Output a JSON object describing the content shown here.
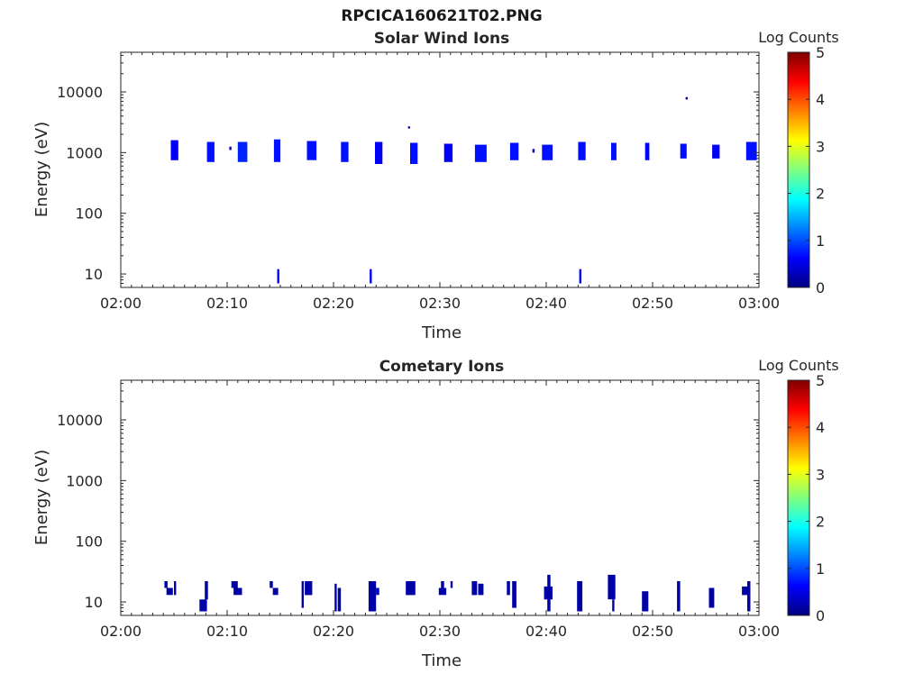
{
  "figure": {
    "filename": "RPCICA160621T02.PNG"
  },
  "colorbar": {
    "min": 0,
    "max": 5,
    "ticks": [
      0,
      1,
      2,
      3,
      4,
      5
    ],
    "tick_labels": [
      "0",
      "1",
      "2",
      "3",
      "4",
      "5"
    ],
    "colormap": "jet"
  },
  "chart_data": [
    {
      "type": "heatmap",
      "title": "Solar Wind Ions",
      "xlabel": "Time",
      "ylabel": "Energy (eV)",
      "colorbar_label": "Log Counts",
      "x_unit": "minutes after 02:00",
      "xlim": [
        "02:00",
        "03:00"
      ],
      "x_ticks": [
        "02:00",
        "02:10",
        "02:20",
        "02:30",
        "02:40",
        "02:50",
        "03:00"
      ],
      "y_scale": "log",
      "ylim": [
        6,
        45000
      ],
      "y_ticks": [
        10,
        100,
        1000,
        10000
      ],
      "y_tick_labels": [
        "10",
        "100",
        "1000",
        "10000"
      ],
      "grid": false,
      "cells": [
        {
          "t": 4.7,
          "dt": 0.7,
          "e_lo": 750,
          "e_hi": 1600,
          "v": 0.6
        },
        {
          "t": 8.1,
          "dt": 0.7,
          "e_lo": 700,
          "e_hi": 1500,
          "v": 0.7
        },
        {
          "t": 10.2,
          "dt": 0.2,
          "e_lo": 1100,
          "e_hi": 1250,
          "v": 0.3
        },
        {
          "t": 11.0,
          "dt": 0.9,
          "e_lo": 700,
          "e_hi": 1500,
          "v": 0.8
        },
        {
          "t": 14.4,
          "dt": 0.6,
          "e_lo": 700,
          "e_hi": 1650,
          "v": 0.7
        },
        {
          "t": 17.5,
          "dt": 0.9,
          "e_lo": 750,
          "e_hi": 1550,
          "v": 0.7
        },
        {
          "t": 20.7,
          "dt": 0.7,
          "e_lo": 700,
          "e_hi": 1500,
          "v": 0.7
        },
        {
          "t": 23.9,
          "dt": 0.7,
          "e_lo": 650,
          "e_hi": 1500,
          "v": 0.6
        },
        {
          "t": 27.0,
          "dt": 0.2,
          "e_lo": 2500,
          "e_hi": 2700,
          "v": 0.2
        },
        {
          "t": 27.2,
          "dt": 0.7,
          "e_lo": 650,
          "e_hi": 1450,
          "v": 0.7
        },
        {
          "t": 30.4,
          "dt": 0.8,
          "e_lo": 700,
          "e_hi": 1400,
          "v": 0.6
        },
        {
          "t": 33.3,
          "dt": 1.1,
          "e_lo": 700,
          "e_hi": 1350,
          "v": 0.7
        },
        {
          "t": 36.6,
          "dt": 0.8,
          "e_lo": 750,
          "e_hi": 1450,
          "v": 0.7
        },
        {
          "t": 38.7,
          "dt": 0.2,
          "e_lo": 1000,
          "e_hi": 1150,
          "v": 0.3
        },
        {
          "t": 39.6,
          "dt": 1.0,
          "e_lo": 750,
          "e_hi": 1350,
          "v": 0.7
        },
        {
          "t": 43.0,
          "dt": 0.7,
          "e_lo": 750,
          "e_hi": 1500,
          "v": 0.7
        },
        {
          "t": 46.1,
          "dt": 0.5,
          "e_lo": 750,
          "e_hi": 1450,
          "v": 0.7
        },
        {
          "t": 49.3,
          "dt": 0.4,
          "e_lo": 750,
          "e_hi": 1450,
          "v": 0.6
        },
        {
          "t": 52.6,
          "dt": 0.6,
          "e_lo": 800,
          "e_hi": 1400,
          "v": 0.7
        },
        {
          "t": 53.1,
          "dt": 0.2,
          "e_lo": 7500,
          "e_hi": 8200,
          "v": 0.2
        },
        {
          "t": 55.6,
          "dt": 0.7,
          "e_lo": 800,
          "e_hi": 1350,
          "v": 0.6
        },
        {
          "t": 58.8,
          "dt": 1.0,
          "e_lo": 750,
          "e_hi": 1500,
          "v": 0.7
        },
        {
          "t": 14.7,
          "dt": 0.2,
          "e_lo": 7,
          "e_hi": 12,
          "v": 0.6
        },
        {
          "t": 23.4,
          "dt": 0.2,
          "e_lo": 7,
          "e_hi": 12,
          "v": 0.6
        },
        {
          "t": 43.1,
          "dt": 0.2,
          "e_lo": 7,
          "e_hi": 12,
          "v": 0.6
        }
      ]
    },
    {
      "type": "heatmap",
      "title": "Cometary Ions",
      "xlabel": "Time",
      "ylabel": "Energy (eV)",
      "colorbar_label": "Log Counts",
      "x_unit": "minutes after 02:00",
      "xlim": [
        "02:00",
        "03:00"
      ],
      "x_ticks": [
        "02:00",
        "02:10",
        "02:20",
        "02:30",
        "02:40",
        "02:50",
        "03:00"
      ],
      "y_scale": "log",
      "ylim": [
        6,
        45000
      ],
      "y_ticks": [
        10,
        100,
        1000,
        10000
      ],
      "y_tick_labels": [
        "10",
        "100",
        "1000",
        "10000"
      ],
      "grid": false,
      "cells": [
        {
          "t": 4.1,
          "dt": 0.3,
          "e_lo": 17,
          "e_hi": 22,
          "v": 0.2
        },
        {
          "t": 4.3,
          "dt": 0.6,
          "e_lo": 13,
          "e_hi": 17,
          "v": 0.2
        },
        {
          "t": 5.0,
          "dt": 0.2,
          "e_lo": 13,
          "e_hi": 22,
          "v": 0.2
        },
        {
          "t": 7.4,
          "dt": 0.7,
          "e_lo": 7,
          "e_hi": 11,
          "v": 0.2
        },
        {
          "t": 7.9,
          "dt": 0.3,
          "e_lo": 11,
          "e_hi": 22,
          "v": 0.2
        },
        {
          "t": 10.4,
          "dt": 0.6,
          "e_lo": 17,
          "e_hi": 22,
          "v": 0.2
        },
        {
          "t": 10.6,
          "dt": 0.8,
          "e_lo": 13,
          "e_hi": 17,
          "v": 0.2
        },
        {
          "t": 14.0,
          "dt": 0.3,
          "e_lo": 17,
          "e_hi": 22,
          "v": 0.2
        },
        {
          "t": 14.3,
          "dt": 0.5,
          "e_lo": 13,
          "e_hi": 17,
          "v": 0.2
        },
        {
          "t": 17.0,
          "dt": 0.2,
          "e_lo": 8,
          "e_hi": 22,
          "v": 0.2
        },
        {
          "t": 17.3,
          "dt": 0.7,
          "e_lo": 13,
          "e_hi": 22,
          "v": 0.2
        },
        {
          "t": 20.1,
          "dt": 0.2,
          "e_lo": 7,
          "e_hi": 20,
          "v": 0.2
        },
        {
          "t": 20.4,
          "dt": 0.3,
          "e_lo": 7,
          "e_hi": 17,
          "v": 0.2
        },
        {
          "t": 23.3,
          "dt": 0.7,
          "e_lo": 7,
          "e_hi": 22,
          "v": 0.2
        },
        {
          "t": 24.0,
          "dt": 0.3,
          "e_lo": 13,
          "e_hi": 17,
          "v": 0.2
        },
        {
          "t": 26.8,
          "dt": 0.9,
          "e_lo": 13,
          "e_hi": 22,
          "v": 0.2
        },
        {
          "t": 29.9,
          "dt": 0.7,
          "e_lo": 13,
          "e_hi": 17,
          "v": 0.2
        },
        {
          "t": 30.1,
          "dt": 0.3,
          "e_lo": 17,
          "e_hi": 22,
          "v": 0.2
        },
        {
          "t": 31.0,
          "dt": 0.2,
          "e_lo": 17,
          "e_hi": 22,
          "v": 0.2
        },
        {
          "t": 33.0,
          "dt": 0.5,
          "e_lo": 13,
          "e_hi": 22,
          "v": 0.2
        },
        {
          "t": 33.6,
          "dt": 0.5,
          "e_lo": 13,
          "e_hi": 20,
          "v": 0.2
        },
        {
          "t": 36.3,
          "dt": 0.3,
          "e_lo": 13,
          "e_hi": 22,
          "v": 0.2
        },
        {
          "t": 36.8,
          "dt": 0.4,
          "e_lo": 8,
          "e_hi": 22,
          "v": 0.2
        },
        {
          "t": 39.8,
          "dt": 0.8,
          "e_lo": 11,
          "e_hi": 18,
          "v": 0.2
        },
        {
          "t": 40.1,
          "dt": 0.3,
          "e_lo": 7,
          "e_hi": 28,
          "v": 0.2
        },
        {
          "t": 42.9,
          "dt": 0.5,
          "e_lo": 7,
          "e_hi": 22,
          "v": 0.2
        },
        {
          "t": 45.8,
          "dt": 0.7,
          "e_lo": 11,
          "e_hi": 28,
          "v": 0.2
        },
        {
          "t": 46.2,
          "dt": 0.2,
          "e_lo": 7,
          "e_hi": 11,
          "v": 0.2
        },
        {
          "t": 49.0,
          "dt": 0.6,
          "e_lo": 7,
          "e_hi": 15,
          "v": 0.2
        },
        {
          "t": 52.3,
          "dt": 0.3,
          "e_lo": 7,
          "e_hi": 22,
          "v": 0.2
        },
        {
          "t": 55.3,
          "dt": 0.5,
          "e_lo": 8,
          "e_hi": 17,
          "v": 0.2
        },
        {
          "t": 58.4,
          "dt": 0.6,
          "e_lo": 13,
          "e_hi": 18,
          "v": 0.2
        },
        {
          "t": 58.9,
          "dt": 0.3,
          "e_lo": 7,
          "e_hi": 22,
          "v": 0.2
        }
      ]
    }
  ]
}
